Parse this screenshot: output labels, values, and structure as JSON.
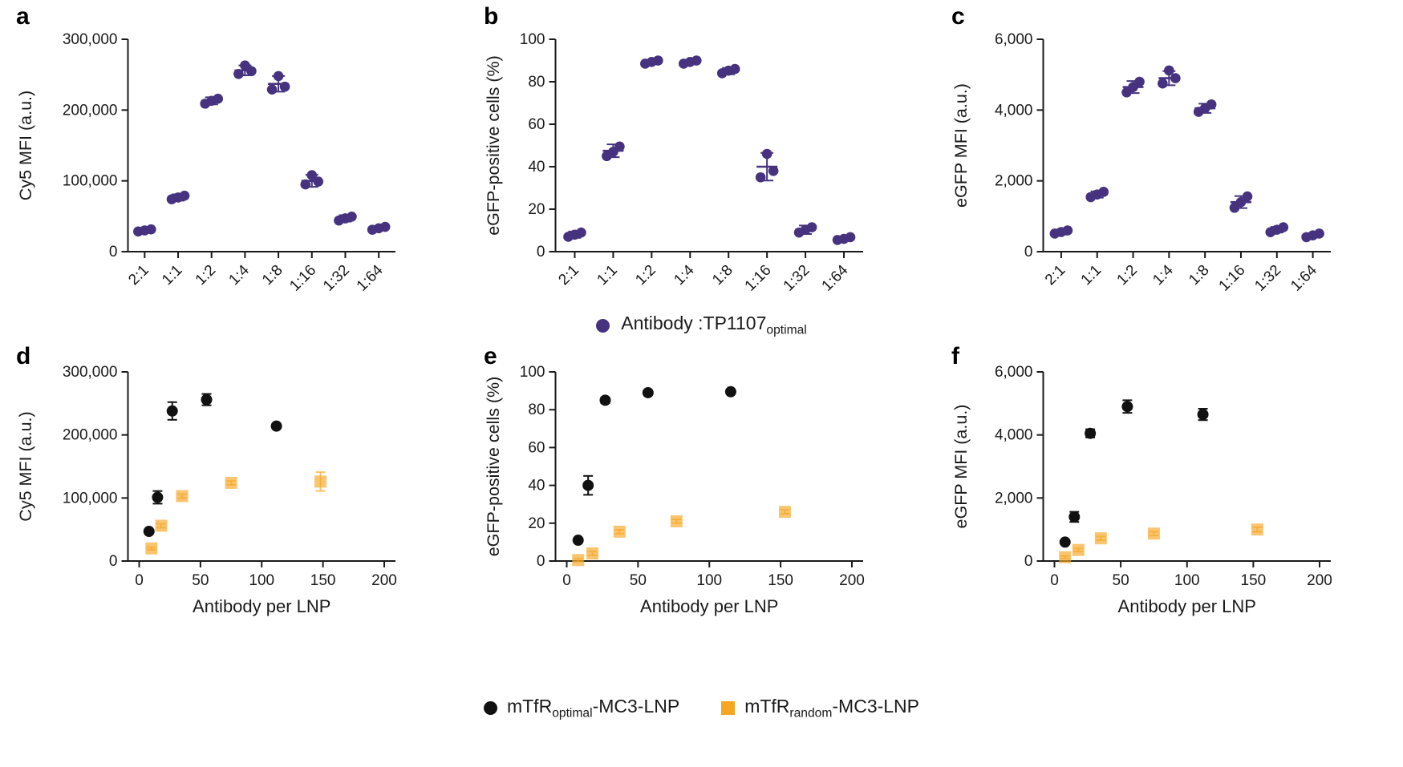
{
  "figure": {
    "background": "#ffffff"
  },
  "legend_top": {
    "marker": "circle",
    "marker_color": "#46327e",
    "label_main": "Antibody :TP1107",
    "label_sub": "optimal"
  },
  "legend_bottom": {
    "items": [
      {
        "marker": "circle",
        "color": "#111111",
        "label_pre": "mTfR",
        "label_sub": "optimal",
        "label_post": "-MC3-LNP"
      },
      {
        "marker": "square",
        "color": "#f6a623",
        "label_pre": "mTfR",
        "label_sub": "random",
        "label_post": "-MC3-LNP"
      }
    ]
  },
  "chart_data": [
    {
      "id": "a",
      "panel_label": "a",
      "type": "scatter",
      "x_type": "categorical",
      "categories": [
        "2:1",
        "1:1",
        "1:2",
        "1:4",
        "1:8",
        "1:16",
        "1:32",
        "1:64"
      ],
      "ylabel": "Cy5 MFI (a.u.)",
      "ylim": [
        0,
        300000
      ],
      "yticks": [
        0,
        100000,
        200000,
        300000
      ],
      "ytick_labels": [
        "0",
        "100,000",
        "200,000",
        "300,000"
      ],
      "series": [
        {
          "name": "Antibody :TP1107optimal",
          "color": "#46327e",
          "marker": "circle",
          "means": [
            30000,
            76500,
            213000,
            256000,
            237000,
            100000,
            47000,
            33000
          ],
          "errors": [
            3500,
            4500,
            5000,
            7000,
            11000,
            8500,
            4500,
            3000
          ],
          "replicates": [
            [
              28500,
              31500,
              30000
            ],
            [
              74000,
              79000,
              76500
            ],
            [
              209000,
              216000,
              213000
            ],
            [
              251000,
              255000,
              263000
            ],
            [
              229000,
              233000,
              248000
            ],
            [
              95000,
              99000,
              108000
            ],
            [
              44000,
              49500,
              47000
            ],
            [
              31000,
              35000,
              33000
            ]
          ]
        }
      ]
    },
    {
      "id": "b",
      "panel_label": "b",
      "type": "scatter",
      "x_type": "categorical",
      "categories": [
        "2:1",
        "1:1",
        "1:2",
        "1:4",
        "1:8",
        "1:16",
        "1:32",
        "1:64"
      ],
      "ylabel": "eGFP-positive cells (%)",
      "ylim": [
        0,
        100
      ],
      "yticks": [
        0,
        20,
        40,
        60,
        80,
        100
      ],
      "ytick_labels": [
        "0",
        "20",
        "40",
        "60",
        "80",
        "100"
      ],
      "series": [
        {
          "name": "Antibody :TP1107optimal",
          "color": "#46327e",
          "marker": "circle",
          "means": [
            8,
            47.5,
            89.3,
            89.3,
            85,
            40,
            10.3,
            6
          ],
          "errors": [
            1.5,
            3,
            1,
            1,
            1.5,
            6.5,
            2,
            1
          ],
          "replicates": [
            [
              7,
              9,
              8
            ],
            [
              45,
              49.5,
              47
            ],
            [
              88.5,
              90,
              89.3
            ],
            [
              88.5,
              90,
              89.3
            ],
            [
              84,
              86,
              85.2
            ],
            [
              35,
              38,
              46
            ],
            [
              9,
              11.5,
              10.3
            ],
            [
              5.5,
              6.8,
              6
            ]
          ]
        }
      ]
    },
    {
      "id": "c",
      "panel_label": "c",
      "type": "scatter",
      "x_type": "categorical",
      "categories": [
        "2:1",
        "1:1",
        "1:2",
        "1:4",
        "1:8",
        "1:16",
        "1:32",
        "1:64"
      ],
      "ylabel": "eGFP MFI (a.u.)",
      "ylim": [
        0,
        6000
      ],
      "yticks": [
        0,
        2000,
        4000,
        6000
      ],
      "ytick_labels": [
        "0",
        "2,000",
        "4,000",
        "6,000"
      ],
      "series": [
        {
          "name": "Antibody :TP1107optimal",
          "color": "#46327e",
          "marker": "circle",
          "means": [
            555,
            1615,
            4650,
            4900,
            4050,
            1400,
            620,
            460
          ],
          "errors": [
            70,
            90,
            170,
            200,
            130,
            170,
            80,
            60
          ],
          "replicates": [
            [
              510,
              600,
              555
            ],
            [
              1540,
              1690,
              1615
            ],
            [
              4500,
              4800,
              4650
            ],
            [
              4750,
              4900,
              5120
            ],
            [
              3950,
              4160,
              4050
            ],
            [
              1240,
              1560,
              1400
            ],
            [
              550,
              690,
              620
            ],
            [
              410,
              510,
              460
            ]
          ]
        }
      ]
    },
    {
      "id": "d",
      "panel_label": "d",
      "type": "scatter",
      "x_type": "numeric",
      "xlabel": "Antibody per LNP",
      "xlim": [
        0,
        200
      ],
      "xticks": [
        0,
        50,
        100,
        150,
        200
      ],
      "ylabel": "Cy5 MFI (a.u.)",
      "ylim": [
        0,
        300000
      ],
      "yticks": [
        0,
        100000,
        200000,
        300000
      ],
      "ytick_labels": [
        "0",
        "100,000",
        "200,000",
        "300,000"
      ],
      "series": [
        {
          "name": "mTfRoptimal-MC3-LNP",
          "color": "#111111",
          "marker": "circle",
          "opacity": 1,
          "x": [
            8,
            15,
            27,
            55,
            112
          ],
          "y": [
            47000,
            101000,
            238000,
            256000,
            214000
          ],
          "yerr": [
            3000,
            10000,
            14000,
            9000,
            2500
          ]
        },
        {
          "name": "mTfRrandom-MC3-LNP",
          "color": "#f6a623",
          "marker": "square",
          "opacity": 0.65,
          "x": [
            10,
            18,
            35,
            75,
            148
          ],
          "y": [
            20000,
            56000,
            103000,
            124000,
            126000
          ],
          "yerr": [
            2000,
            3000,
            3000,
            3000,
            15000
          ]
        }
      ]
    },
    {
      "id": "e",
      "panel_label": "e",
      "type": "scatter",
      "x_type": "numeric",
      "xlabel": "Antibody per LNP",
      "xlim": [
        0,
        200
      ],
      "xticks": [
        0,
        50,
        100,
        150,
        200
      ],
      "ylabel": "eGFP-positive cells (%)",
      "ylim": [
        0,
        100
      ],
      "yticks": [
        0,
        20,
        40,
        60,
        80,
        100
      ],
      "ytick_labels": [
        "0",
        "20",
        "40",
        "60",
        "80",
        "100"
      ],
      "series": [
        {
          "name": "mTfRoptimal-MC3-LNP",
          "color": "#111111",
          "marker": "circle",
          "opacity": 1,
          "x": [
            8,
            15,
            27,
            57,
            115
          ],
          "y": [
            11,
            40,
            85,
            89,
            89.5
          ],
          "yerr": [
            1,
            5,
            1.5,
            1,
            1
          ]
        },
        {
          "name": "mTfRrandom-MC3-LNP",
          "color": "#f6a623",
          "marker": "square",
          "opacity": 0.65,
          "x": [
            8,
            18,
            37,
            77,
            153
          ],
          "y": [
            0.5,
            4,
            15.5,
            21,
            26
          ],
          "yerr": [
            0.8,
            1,
            1,
            1,
            1
          ]
        }
      ]
    },
    {
      "id": "f",
      "panel_label": "f",
      "type": "scatter",
      "x_type": "numeric",
      "xlabel": "Antibody per LNP",
      "xlim": [
        0,
        200
      ],
      "xticks": [
        0,
        50,
        100,
        150,
        200
      ],
      "ylabel": "eGFP MFI (a.u.)",
      "ylim": [
        0,
        6000
      ],
      "yticks": [
        0,
        2000,
        4000,
        6000
      ],
      "ytick_labels": [
        "0",
        "2,000",
        "4,000",
        "6,000"
      ],
      "series": [
        {
          "name": "mTfRoptimal-MC3-LNP",
          "color": "#111111",
          "marker": "circle",
          "opacity": 1,
          "x": [
            8,
            15,
            27,
            55,
            112
          ],
          "y": [
            600,
            1400,
            4050,
            4900,
            4650
          ],
          "yerr": [
            60,
            160,
            130,
            200,
            180
          ]
        },
        {
          "name": "mTfRrandom-MC3-LNP",
          "color": "#f6a623",
          "marker": "square",
          "opacity": 0.65,
          "x": [
            8,
            18,
            35,
            75,
            153
          ],
          "y": [
            120,
            350,
            720,
            870,
            1000
          ],
          "yerr": [
            40,
            50,
            60,
            60,
            70
          ]
        }
      ]
    }
  ]
}
